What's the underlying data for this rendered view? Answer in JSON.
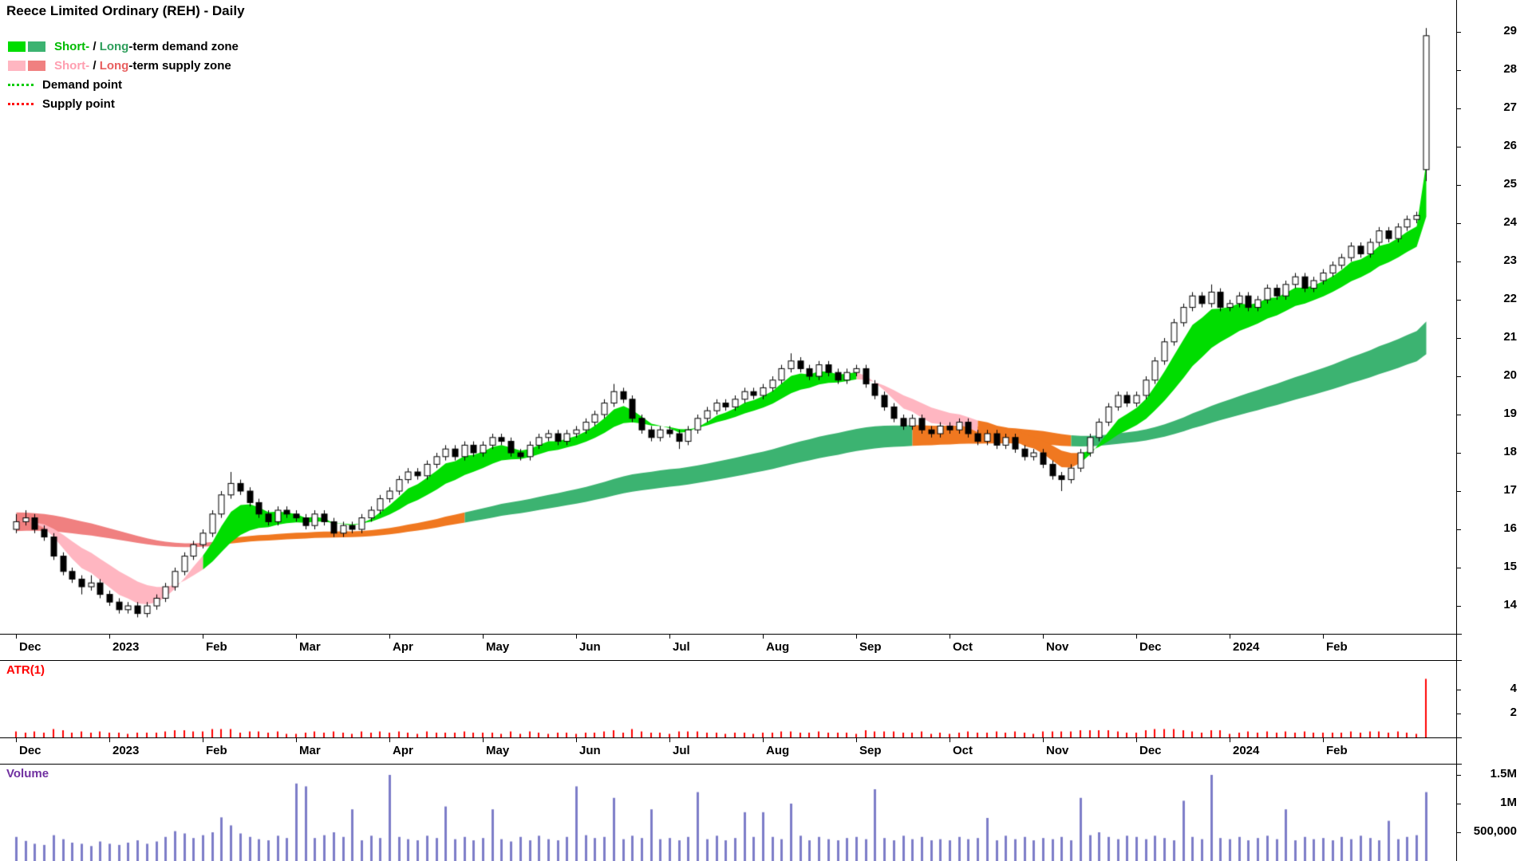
{
  "title": "Reece Limited Ordinary (REH) - Daily",
  "legend": {
    "rows": [
      {
        "type": "swatches",
        "swatches": [
          "#00dd00",
          "#3cb371"
        ],
        "parts": [
          {
            "text": "Short-",
            "color": "#00bb00"
          },
          {
            "text": " / ",
            "color": "#000000"
          },
          {
            "text": "Long",
            "color": "#2e9e5b"
          },
          {
            "text": "-term demand zone",
            "color": "#000000"
          }
        ]
      },
      {
        "type": "swatches",
        "swatches": [
          "#ffb6c1",
          "#f08080"
        ],
        "parts": [
          {
            "text": "Short-",
            "color": "#ff9eb0"
          },
          {
            "text": " / ",
            "color": "#000000"
          },
          {
            "text": "Long",
            "color": "#e85f5f"
          },
          {
            "text": "-term supply zone",
            "color": "#000000"
          }
        ]
      },
      {
        "type": "dotted",
        "line_color": "#00cc00",
        "parts": [
          {
            "text": "Demand point",
            "color": "#000000"
          }
        ]
      },
      {
        "type": "dotted",
        "line_color": "#ff0000",
        "parts": [
          {
            "text": "Supply point",
            "color": "#000000"
          }
        ]
      }
    ]
  },
  "price_axis": {
    "ticks": [
      29,
      28,
      27,
      26,
      25,
      24,
      23,
      22,
      21,
      20,
      19,
      18,
      17,
      16,
      15,
      14
    ]
  },
  "chart_data": {
    "type": "candlestick",
    "title": "Reece Limited Ordinary (REH) - Daily",
    "price_range": [
      14,
      29
    ],
    "x_axis": [
      {
        "label": "Dec",
        "candle_index": 0
      },
      {
        "label": "2023",
        "candle_index": 10
      },
      {
        "label": "Feb",
        "candle_index": 20
      },
      {
        "label": "Mar",
        "candle_index": 30
      },
      {
        "label": "Apr",
        "candle_index": 40
      },
      {
        "label": "May",
        "candle_index": 50
      },
      {
        "label": "Jun",
        "candle_index": 60
      },
      {
        "label": "Jul",
        "candle_index": 70
      },
      {
        "label": "Aug",
        "candle_index": 80
      },
      {
        "label": "Sep",
        "candle_index": 90
      },
      {
        "label": "Oct",
        "candle_index": 100
      },
      {
        "label": "Nov",
        "candle_index": 110
      },
      {
        "label": "Dec",
        "candle_index": 120
      },
      {
        "label": "2024",
        "candle_index": 130
      },
      {
        "label": "Feb",
        "candle_index": 140
      }
    ],
    "candles": [
      [
        16.0,
        16.4,
        15.9,
        16.2
      ],
      [
        16.2,
        16.5,
        16.1,
        16.3
      ],
      [
        16.3,
        16.4,
        15.9,
        16.0
      ],
      [
        16.0,
        16.1,
        15.7,
        15.8
      ],
      [
        15.8,
        15.9,
        15.2,
        15.3
      ],
      [
        15.3,
        15.4,
        14.8,
        14.9
      ],
      [
        14.9,
        15.0,
        14.6,
        14.7
      ],
      [
        14.7,
        14.8,
        14.3,
        14.5
      ],
      [
        14.5,
        14.8,
        14.4,
        14.6
      ],
      [
        14.6,
        14.7,
        14.2,
        14.3
      ],
      [
        14.3,
        14.4,
        14.0,
        14.1
      ],
      [
        14.1,
        14.2,
        13.8,
        13.9
      ],
      [
        13.9,
        14.1,
        13.8,
        14.0
      ],
      [
        14.0,
        14.1,
        13.7,
        13.8
      ],
      [
        13.8,
        14.1,
        13.7,
        14.0
      ],
      [
        14.0,
        14.3,
        13.9,
        14.2
      ],
      [
        14.2,
        14.6,
        14.1,
        14.5
      ],
      [
        14.5,
        15.0,
        14.4,
        14.9
      ],
      [
        14.9,
        15.4,
        14.8,
        15.3
      ],
      [
        15.3,
        15.7,
        15.2,
        15.6
      ],
      [
        15.6,
        16.0,
        15.5,
        15.9
      ],
      [
        15.9,
        16.5,
        15.8,
        16.4
      ],
      [
        16.4,
        17.0,
        16.3,
        16.9
      ],
      [
        16.9,
        17.5,
        16.8,
        17.2
      ],
      [
        17.2,
        17.3,
        16.9,
        17.0
      ],
      [
        17.0,
        17.1,
        16.6,
        16.7
      ],
      [
        16.7,
        16.8,
        16.3,
        16.4
      ],
      [
        16.4,
        16.5,
        16.1,
        16.2
      ],
      [
        16.2,
        16.6,
        16.1,
        16.5
      ],
      [
        16.5,
        16.6,
        16.3,
        16.4
      ],
      [
        16.4,
        16.5,
        16.2,
        16.3
      ],
      [
        16.3,
        16.4,
        16.0,
        16.1
      ],
      [
        16.1,
        16.5,
        16.0,
        16.4
      ],
      [
        16.4,
        16.5,
        16.1,
        16.2
      ],
      [
        16.2,
        16.3,
        15.8,
        15.9
      ],
      [
        15.9,
        16.2,
        15.8,
        16.1
      ],
      [
        16.1,
        16.2,
        15.9,
        16.0
      ],
      [
        16.0,
        16.4,
        15.9,
        16.3
      ],
      [
        16.3,
        16.6,
        16.2,
        16.5
      ],
      [
        16.5,
        16.9,
        16.4,
        16.8
      ],
      [
        16.8,
        17.1,
        16.7,
        17.0
      ],
      [
        17.0,
        17.4,
        16.9,
        17.3
      ],
      [
        17.3,
        17.6,
        17.2,
        17.5
      ],
      [
        17.5,
        17.6,
        17.3,
        17.4
      ],
      [
        17.4,
        17.8,
        17.3,
        17.7
      ],
      [
        17.7,
        18.0,
        17.6,
        17.9
      ],
      [
        17.9,
        18.2,
        17.8,
        18.1
      ],
      [
        18.1,
        18.2,
        17.8,
        17.9
      ],
      [
        17.9,
        18.3,
        17.8,
        18.2
      ],
      [
        18.2,
        18.3,
        17.9,
        18.0
      ],
      [
        18.0,
        18.3,
        17.9,
        18.2
      ],
      [
        18.2,
        18.5,
        18.1,
        18.4
      ],
      [
        18.4,
        18.5,
        18.2,
        18.3
      ],
      [
        18.3,
        18.4,
        17.9,
        18.0
      ],
      [
        18.0,
        18.1,
        17.8,
        17.9
      ],
      [
        17.9,
        18.3,
        17.8,
        18.2
      ],
      [
        18.2,
        18.5,
        18.1,
        18.4
      ],
      [
        18.4,
        18.6,
        18.3,
        18.5
      ],
      [
        18.5,
        18.6,
        18.2,
        18.3
      ],
      [
        18.3,
        18.6,
        18.2,
        18.5
      ],
      [
        18.5,
        18.7,
        18.4,
        18.6
      ],
      [
        18.6,
        18.9,
        18.5,
        18.8
      ],
      [
        18.8,
        19.1,
        18.7,
        19.0
      ],
      [
        19.0,
        19.4,
        18.9,
        19.3
      ],
      [
        19.3,
        19.8,
        19.2,
        19.6
      ],
      [
        19.6,
        19.7,
        19.3,
        19.4
      ],
      [
        19.4,
        19.5,
        18.8,
        18.9
      ],
      [
        18.9,
        19.0,
        18.5,
        18.6
      ],
      [
        18.6,
        18.7,
        18.3,
        18.4
      ],
      [
        18.4,
        18.7,
        18.3,
        18.6
      ],
      [
        18.6,
        18.7,
        18.4,
        18.5
      ],
      [
        18.5,
        18.6,
        18.1,
        18.3
      ],
      [
        18.3,
        18.7,
        18.2,
        18.6
      ],
      [
        18.6,
        19.0,
        18.5,
        18.9
      ],
      [
        18.9,
        19.2,
        18.8,
        19.1
      ],
      [
        19.1,
        19.4,
        19.0,
        19.3
      ],
      [
        19.3,
        19.4,
        19.1,
        19.2
      ],
      [
        19.2,
        19.5,
        19.1,
        19.4
      ],
      [
        19.4,
        19.7,
        19.3,
        19.6
      ],
      [
        19.6,
        19.7,
        19.4,
        19.5
      ],
      [
        19.5,
        19.8,
        19.4,
        19.7
      ],
      [
        19.7,
        20.0,
        19.6,
        19.9
      ],
      [
        19.9,
        20.3,
        19.8,
        20.2
      ],
      [
        20.2,
        20.6,
        20.1,
        20.4
      ],
      [
        20.4,
        20.5,
        20.1,
        20.2
      ],
      [
        20.2,
        20.3,
        19.9,
        20.0
      ],
      [
        20.0,
        20.4,
        19.9,
        20.3
      ],
      [
        20.3,
        20.4,
        20.0,
        20.1
      ],
      [
        20.1,
        20.2,
        19.8,
        19.9
      ],
      [
        19.9,
        20.2,
        19.8,
        20.1
      ],
      [
        20.1,
        20.3,
        20.0,
        20.2
      ],
      [
        20.2,
        20.3,
        19.7,
        19.8
      ],
      [
        19.8,
        19.9,
        19.4,
        19.5
      ],
      [
        19.5,
        19.6,
        19.1,
        19.2
      ],
      [
        19.2,
        19.3,
        18.8,
        18.9
      ],
      [
        18.9,
        19.0,
        18.6,
        18.7
      ],
      [
        18.7,
        19.0,
        18.6,
        18.9
      ],
      [
        18.9,
        19.0,
        18.5,
        18.6
      ],
      [
        18.6,
        18.7,
        18.4,
        18.5
      ],
      [
        18.5,
        18.8,
        18.4,
        18.7
      ],
      [
        18.7,
        18.8,
        18.5,
        18.6
      ],
      [
        18.6,
        18.9,
        18.5,
        18.8
      ],
      [
        18.8,
        18.9,
        18.4,
        18.5
      ],
      [
        18.5,
        18.6,
        18.2,
        18.3
      ],
      [
        18.3,
        18.6,
        18.2,
        18.5
      ],
      [
        18.5,
        18.6,
        18.1,
        18.2
      ],
      [
        18.2,
        18.5,
        18.1,
        18.4
      ],
      [
        18.4,
        18.5,
        18.0,
        18.1
      ],
      [
        18.1,
        18.2,
        17.8,
        17.9
      ],
      [
        17.9,
        18.1,
        17.8,
        18.0
      ],
      [
        18.0,
        18.1,
        17.6,
        17.7
      ],
      [
        17.7,
        17.8,
        17.3,
        17.4
      ],
      [
        17.4,
        17.5,
        17.0,
        17.3
      ],
      [
        17.3,
        17.7,
        17.2,
        17.6
      ],
      [
        17.6,
        18.1,
        17.5,
        18.0
      ],
      [
        18.0,
        18.5,
        17.9,
        18.4
      ],
      [
        18.4,
        18.9,
        18.3,
        18.8
      ],
      [
        18.8,
        19.3,
        18.7,
        19.2
      ],
      [
        19.2,
        19.6,
        19.1,
        19.5
      ],
      [
        19.5,
        19.6,
        19.2,
        19.3
      ],
      [
        19.3,
        19.6,
        19.2,
        19.5
      ],
      [
        19.5,
        20.0,
        19.4,
        19.9
      ],
      [
        19.9,
        20.5,
        19.8,
        20.4
      ],
      [
        20.4,
        21.0,
        20.3,
        20.9
      ],
      [
        20.9,
        21.5,
        20.8,
        21.4
      ],
      [
        21.4,
        21.9,
        21.3,
        21.8
      ],
      [
        21.8,
        22.2,
        21.7,
        22.1
      ],
      [
        22.1,
        22.2,
        21.8,
        21.9
      ],
      [
        21.9,
        22.4,
        21.8,
        22.2
      ],
      [
        22.2,
        22.3,
        21.7,
        21.8
      ],
      [
        21.8,
        22.0,
        21.7,
        21.9
      ],
      [
        21.9,
        22.2,
        21.8,
        22.1
      ],
      [
        22.1,
        22.2,
        21.7,
        21.8
      ],
      [
        21.8,
        22.1,
        21.7,
        22.0
      ],
      [
        22.0,
        22.4,
        21.9,
        22.3
      ],
      [
        22.3,
        22.4,
        22.0,
        22.1
      ],
      [
        22.1,
        22.5,
        22.0,
        22.4
      ],
      [
        22.4,
        22.7,
        22.3,
        22.6
      ],
      [
        22.6,
        22.7,
        22.2,
        22.3
      ],
      [
        22.3,
        22.6,
        22.2,
        22.5
      ],
      [
        22.5,
        22.8,
        22.4,
        22.7
      ],
      [
        22.7,
        23.0,
        22.6,
        22.9
      ],
      [
        22.9,
        23.2,
        22.8,
        23.1
      ],
      [
        23.1,
        23.5,
        23.0,
        23.4
      ],
      [
        23.4,
        23.5,
        23.1,
        23.2
      ],
      [
        23.2,
        23.6,
        23.1,
        23.5
      ],
      [
        23.5,
        23.9,
        23.4,
        23.8
      ],
      [
        23.8,
        23.9,
        23.5,
        23.6
      ],
      [
        23.6,
        24.0,
        23.5,
        23.9
      ],
      [
        23.9,
        24.2,
        23.8,
        24.1
      ],
      [
        24.1,
        24.3,
        24.0,
        24.2
      ],
      [
        25.4,
        29.1,
        25.1,
        28.9
      ]
    ],
    "volume_k": [
      420,
      350,
      300,
      280,
      450,
      380,
      320,
      300,
      260,
      340,
      300,
      280,
      320,
      360,
      300,
      340,
      420,
      520,
      480,
      400,
      450,
      500,
      760,
      620,
      480,
      420,
      380,
      360,
      440,
      400,
      1350,
      1300,
      400,
      450,
      500,
      420,
      900,
      360,
      440,
      400,
      1500,
      420,
      380,
      360,
      440,
      400,
      950,
      380,
      420,
      360,
      400,
      900,
      380,
      340,
      420,
      360,
      440,
      380,
      360,
      420,
      1300,
      450,
      400,
      420,
      1100,
      380,
      440,
      400,
      900,
      380,
      400,
      360,
      420,
      1200,
      380,
      440,
      360,
      400,
      850,
      420,
      850,
      420,
      380,
      1000,
      440,
      360,
      420,
      380,
      360,
      400,
      420,
      380,
      1250,
      400,
      360,
      440,
      380,
      420,
      360,
      380,
      360,
      420,
      380,
      400,
      750,
      360,
      440,
      380,
      420,
      360,
      400,
      380,
      420,
      360,
      1100,
      450,
      500,
      420,
      380,
      440,
      420,
      380,
      440,
      400,
      360,
      1050,
      420,
      380,
      1500,
      400,
      380,
      420,
      360,
      400,
      440,
      380,
      900,
      360,
      420,
      380,
      400,
      360,
      420,
      380,
      440,
      400,
      360,
      700,
      380,
      420,
      450,
      1200
    ],
    "bands": {
      "fast": {
        "name": "short-term zone",
        "periods": [
          5,
          13
        ],
        "segments": [
          {
            "from": 0,
            "to": 20,
            "color": "#ffb6c1"
          },
          {
            "from": 20,
            "to": 90,
            "color": "#00dd00"
          },
          {
            "from": 90,
            "to": 103,
            "color": "#ffb6c1"
          },
          {
            "from": 103,
            "to": 114,
            "color": "#f07820"
          },
          {
            "from": 114,
            "to": 151,
            "color": "#00dd00"
          }
        ]
      },
      "slow": {
        "name": "long-term zone",
        "periods": [
          60,
          90
        ],
        "seeds": [
          16.45,
          15.95
        ],
        "segments": [
          {
            "from": 0,
            "to": 22,
            "color": "#f08080"
          },
          {
            "from": 22,
            "to": 48,
            "color": "#f07820"
          },
          {
            "from": 48,
            "to": 96,
            "color": "#3cb371"
          },
          {
            "from": 96,
            "to": 113,
            "color": "#f07820"
          },
          {
            "from": 113,
            "to": 151,
            "color": "#3cb371"
          }
        ]
      }
    },
    "panels": {
      "atr": {
        "label": "ATR(1)",
        "label_color": "#ff0000",
        "bar_color": "#ff0000",
        "ticks": [
          {
            "label": "4",
            "value": 4
          },
          {
            "label": "2",
            "value": 2
          }
        ]
      },
      "volume": {
        "label": "Volume",
        "label_color": "#7030a0",
        "bar_color": "#7d7dc8",
        "ticks": [
          {
            "label": "1.5M",
            "value_k": 1500
          },
          {
            "label": "1M",
            "value_k": 1000
          },
          {
            "label": "500,000",
            "value_k": 500
          }
        ]
      }
    }
  }
}
